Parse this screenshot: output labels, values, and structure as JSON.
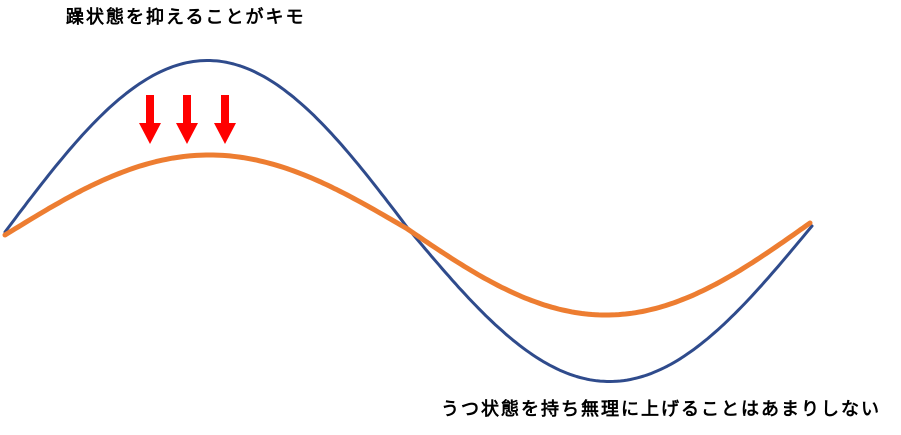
{
  "captions": {
    "top": "躁状態を抑えることがキモ",
    "bottom": "うつ状態を持ち無理に上げることはあまりしない"
  },
  "colors": {
    "large_wave": "#2F4B8C",
    "small_wave": "#ED7D31",
    "arrows": "#FF0000",
    "background": "#FFFFFF",
    "text": "#000000"
  }
}
